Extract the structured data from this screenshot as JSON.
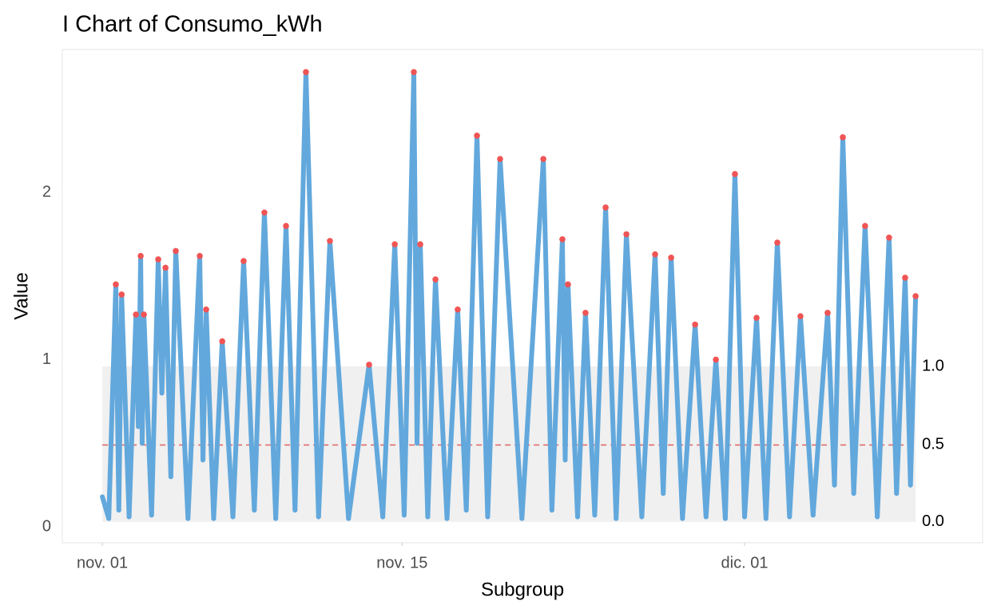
{
  "chart_data": {
    "type": "control",
    "title": "I Chart of Consumo_kWh",
    "x_label": "Subgroup",
    "y_label": "Value",
    "x": [
      0,
      0.3,
      0.63,
      0.77,
      0.9,
      1.25,
      1.57,
      1.68,
      1.79,
      1.86,
      1.94,
      2.3,
      2.61,
      2.78,
      2.95,
      3.2,
      3.43,
      4.0,
      4.55,
      4.7,
      4.85,
      5.2,
      5.6,
      6.1,
      6.6,
      7.1,
      7.57,
      8.1,
      8.58,
      9.0,
      9.51,
      10.1,
      10.63,
      11.5,
      12.46,
      13.1,
      13.66,
      14.1,
      14.55,
      14.7,
      14.85,
      15.2,
      15.56,
      16.1,
      16.6,
      17.0,
      17.5,
      18.0,
      18.58,
      19.6,
      20.6,
      21.0,
      21.49,
      21.62,
      21.75,
      22.2,
      22.57,
      23.0,
      23.51,
      24.0,
      24.48,
      25.2,
      25.82,
      26.2,
      26.57,
      27.1,
      27.69,
      28.2,
      28.66,
      29.1,
      29.55,
      30.0,
      30.56,
      31.0,
      31.53,
      32.1,
      32.61,
      33.2,
      33.88,
      34.2,
      34.59,
      35.1,
      35.63,
      36.2,
      36.75,
      37.1,
      37.5,
      37.75,
      37.99
    ],
    "series": [
      {
        "name": "Consumo_kWh",
        "color": "#62a8dc",
        "values": [
          0.18,
          0.05,
          1.45,
          0.1,
          1.39,
          0.06,
          1.27,
          0.6,
          1.62,
          0.5,
          1.27,
          0.07,
          1.6,
          0.8,
          1.55,
          0.3,
          1.65,
          0.05,
          1.62,
          0.4,
          1.3,
          0.05,
          1.11,
          0.06,
          1.59,
          0.1,
          1.88,
          0.05,
          1.8,
          0.1,
          2.72,
          0.06,
          1.71,
          0.05,
          0.97,
          0.06,
          1.69,
          0.07,
          2.72,
          0.5,
          1.69,
          0.06,
          1.48,
          0.05,
          1.3,
          0.1,
          2.34,
          0.06,
          2.2,
          0.05,
          2.2,
          0.1,
          1.72,
          0.4,
          1.45,
          0.06,
          1.28,
          0.07,
          1.91,
          0.05,
          1.75,
          0.06,
          1.63,
          0.2,
          1.61,
          0.05,
          1.21,
          0.06,
          1.0,
          0.05,
          2.11,
          0.06,
          1.25,
          0.05,
          1.7,
          0.06,
          1.26,
          0.07,
          1.28,
          0.25,
          2.33,
          0.2,
          1.8,
          0.06,
          1.73,
          0.2,
          1.49,
          0.25,
          1.38
        ]
      }
    ],
    "out_of_control_color": "#f05454",
    "limit_band_color": "#f0f0f0",
    "center_line_color": "#e06060",
    "control_limits": [
      {
        "value": 0.96,
        "label": "1.0"
      },
      {
        "value": 0.49,
        "label": "0.5"
      },
      {
        "value": 0.03,
        "label": "0.0"
      }
    ],
    "xlim": [
      -1.87,
      41.12
    ],
    "ylim": [
      -0.095,
      2.855
    ],
    "xticks": [
      {
        "value": 0,
        "label": "nov. 01"
      },
      {
        "value": 14,
        "label": "nov. 15"
      },
      {
        "value": 30,
        "label": "dic. 01"
      }
    ],
    "yticks": [
      0,
      1,
      2
    ]
  }
}
